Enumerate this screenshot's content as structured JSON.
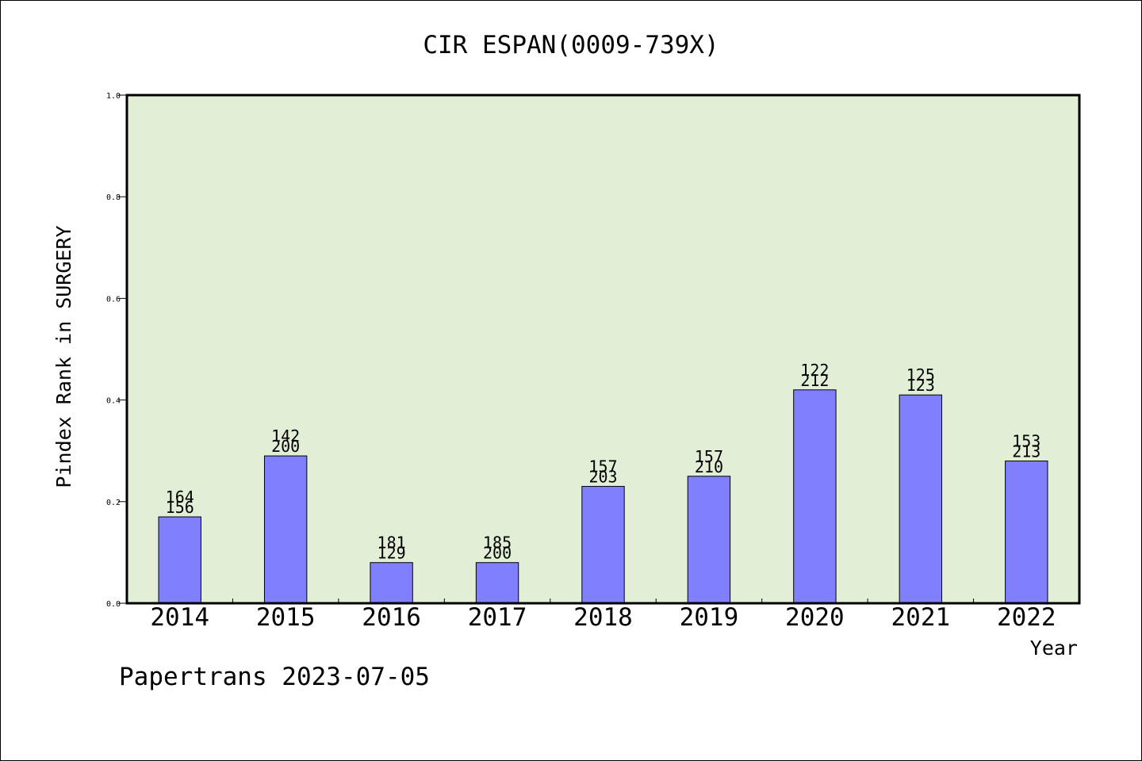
{
  "chart_data": {
    "type": "bar",
    "title": "CIR ESPAN(0009-739X)",
    "xlabel": "Year",
    "ylabel": "Pindex Rank in SURGERY",
    "footer": "Papertrans 2023-07-05",
    "ylim": [
      0,
      1.0
    ],
    "yticks": [
      "0.0",
      "0.2",
      "0.4",
      "0.6",
      "0.8",
      "1.0"
    ],
    "categories": [
      "2014",
      "2015",
      "2016",
      "2017",
      "2018",
      "2019",
      "2020",
      "2021",
      "2022"
    ],
    "values": [
      0.17,
      0.29,
      0.08,
      0.08,
      0.23,
      0.25,
      0.42,
      0.41,
      0.28
    ],
    "labels_top": [
      "164",
      "142",
      "181",
      "185",
      "157",
      "157",
      "122",
      "125",
      "153"
    ],
    "labels_bottom": [
      "156",
      "200",
      "129",
      "200",
      "203",
      "210",
      "212",
      "123",
      "213"
    ],
    "grid": false,
    "colors": {
      "plot_bg": "#e2efd6",
      "bar": "#8080ff",
      "bar_edge": "#000000"
    }
  }
}
